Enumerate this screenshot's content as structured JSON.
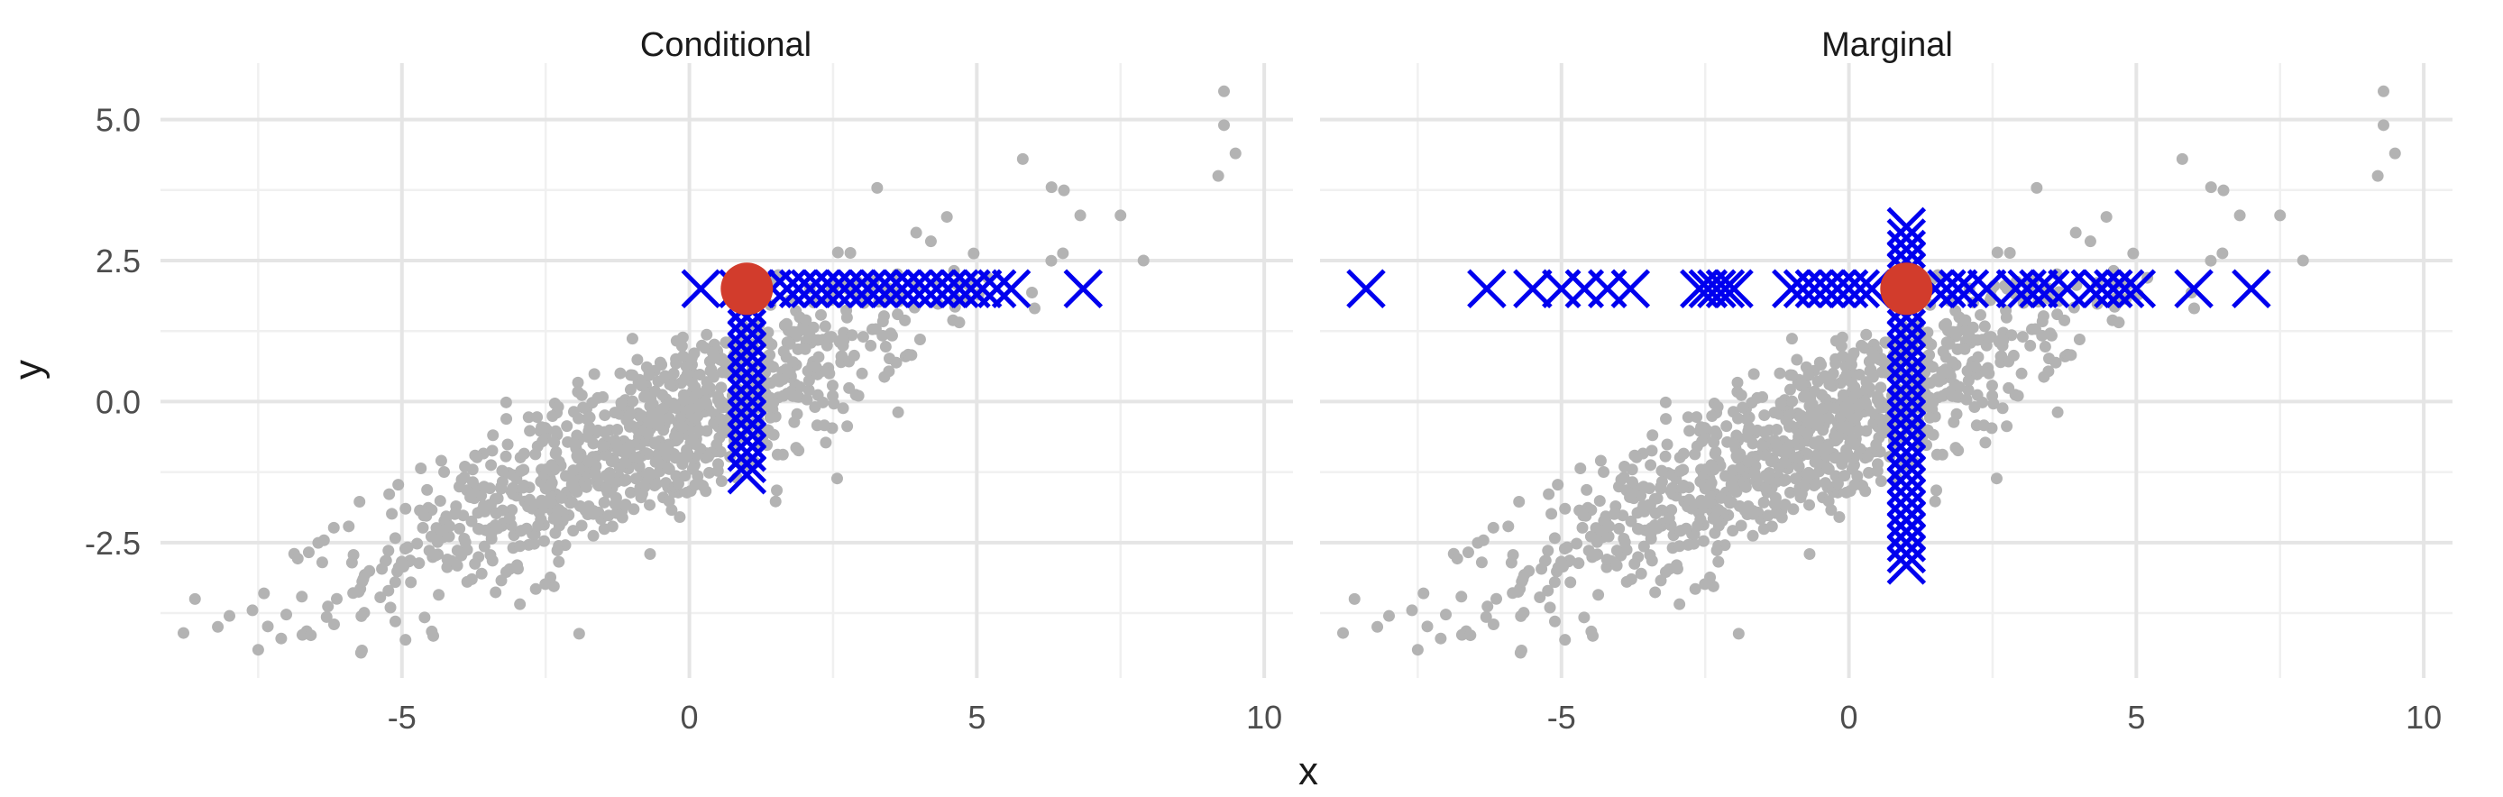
{
  "chart_data": {
    "type": "scatter",
    "xlabel": "x",
    "ylabel": "y",
    "xlim": [
      -9.2,
      10.5
    ],
    "ylim": [
      -4.9,
      6.0
    ],
    "x_ticks": [
      -5,
      0,
      5,
      10
    ],
    "x_tick_labels": [
      "-5",
      "0",
      "5",
      "10"
    ],
    "y_ticks": [
      -2.5,
      0.0,
      2.5,
      5.0
    ],
    "y_tick_labels": [
      "-2.5",
      "0.0",
      "2.5",
      "5.0"
    ],
    "grid": true,
    "background_points": {
      "color": "#b3b3b3",
      "description_free": true,
      "n_approx": 1000,
      "trend": {
        "slope": 0.47,
        "intercept": -0.32
      },
      "outliers": [
        {
          "x": -8.6,
          "y": -3.5
        },
        {
          "x": -8.0,
          "y": -3.8
        },
        {
          "x": -7.5,
          "y": -4.4
        },
        {
          "x": -7.6,
          "y": -3.7
        },
        {
          "x": -7.1,
          "y": -4.2
        },
        {
          "x": -7.4,
          "y": -3.4
        },
        {
          "x": 6.8,
          "y": 3.3
        },
        {
          "x": 7.5,
          "y": 3.3
        },
        {
          "x": 7.9,
          "y": 2.5
        },
        {
          "x": 9.2,
          "y": 4.0
        },
        {
          "x": 9.3,
          "y": 4.9
        },
        {
          "x": 9.5,
          "y": 4.4
        },
        {
          "x": 9.3,
          "y": 5.5
        },
        {
          "x": 5.8,
          "y": 4.3
        },
        {
          "x": 6.3,
          "y": 3.8
        }
      ]
    },
    "focal_point": {
      "x": 1.0,
      "y": 2.0,
      "color": "#d23c2c"
    },
    "panels": [
      {
        "title": "Conditional",
        "crosses_horizontal_x": [
          0.2,
          0.85,
          1.15,
          1.45,
          1.7,
          1.9,
          2.1,
          2.3,
          2.5,
          2.7,
          2.9,
          3.1,
          3.3,
          3.5,
          3.7,
          3.9,
          4.1,
          4.3,
          4.5,
          4.7,
          4.9,
          5.1,
          5.35,
          5.6,
          6.85
        ],
        "crosses_horizontal_y": 2.0,
        "crosses_vertical_x": 1.0,
        "crosses_vertical_y": [
          1.7,
          1.5,
          1.3,
          1.1,
          0.9,
          0.7,
          0.5,
          0.3,
          0.1,
          -0.1,
          -0.3,
          -0.5,
          -0.7,
          -0.9,
          -1.1,
          -1.3
        ]
      },
      {
        "title": "Marginal",
        "crosses_horizontal_x": [
          -8.4,
          -6.3,
          -5.5,
          -5.0,
          -4.6,
          -4.2,
          -3.8,
          -2.6,
          -2.45,
          -2.3,
          -2.15,
          -2.0,
          -1.0,
          -0.8,
          -0.6,
          -0.4,
          -0.2,
          0.0,
          0.2,
          0.4,
          1.5,
          1.7,
          1.9,
          2.1,
          2.4,
          2.9,
          3.1,
          3.3,
          3.5,
          3.8,
          4.2,
          4.4,
          4.6,
          4.8,
          5.0,
          6.0,
          7.0
        ],
        "crosses_horizontal_y": 2.0,
        "crosses_vertical_x": 1.0,
        "crosses_vertical_y": [
          3.1,
          2.9,
          2.7,
          2.5,
          2.3,
          1.7,
          1.5,
          1.3,
          1.1,
          0.9,
          0.7,
          0.5,
          0.3,
          0.1,
          -0.1,
          -0.3,
          -0.5,
          -0.7,
          -0.9,
          -1.1,
          -1.3,
          -1.5,
          -1.7,
          -1.9,
          -2.1,
          -2.3,
          -2.5,
          -2.7,
          -2.9
        ]
      }
    ]
  }
}
